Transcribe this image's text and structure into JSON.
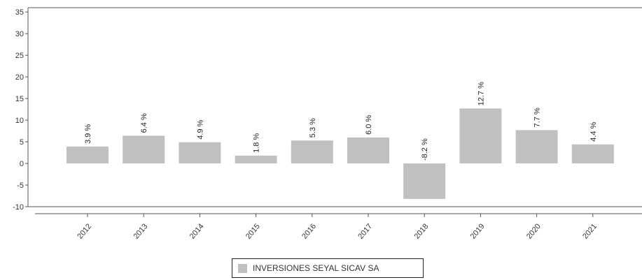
{
  "chart_data": {
    "type": "bar",
    "categories": [
      "2012",
      "2013",
      "2014",
      "2015",
      "2016",
      "2017",
      "2018",
      "2019",
      "2020",
      "2021"
    ],
    "series": [
      {
        "name": "INVERSIONES SEYAL SICAV SA",
        "values": [
          3.9,
          6.4,
          4.9,
          1.8,
          5.3,
          6.0,
          -8.2,
          12.7,
          7.7,
          4.4
        ],
        "labels": [
          "3.9 %",
          "6.4 %",
          "4.9 %",
          "1.8 %",
          "5.3 %",
          "6.0 %",
          "-8.2 %",
          "12.7 %",
          "7.7 %",
          "4.4 %"
        ]
      }
    ],
    "yticks": [
      "35",
      "30",
      "25",
      "20",
      "15",
      "10",
      "5",
      "0",
      "-5",
      "-10"
    ],
    "ylim": [
      -10,
      36
    ],
    "grid": false,
    "legend_position": "bottom-center",
    "colors": {
      "bar": "#c0c0c0",
      "axis": "#555555"
    }
  }
}
